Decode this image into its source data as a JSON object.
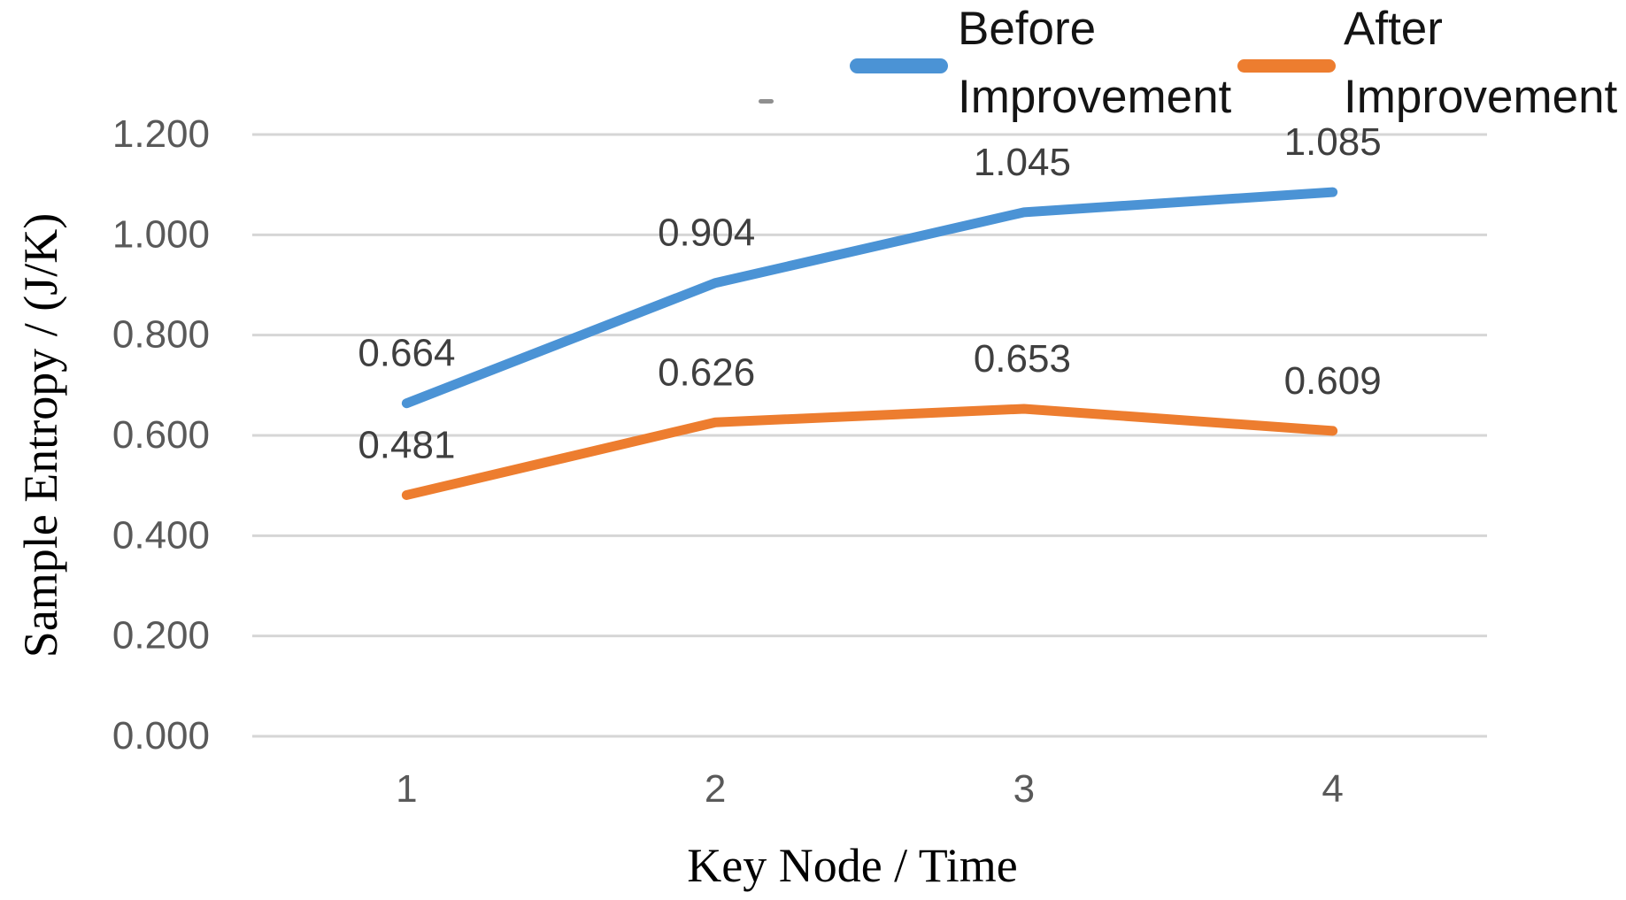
{
  "legend": {
    "items": [
      {
        "label": "Before Improvement",
        "lines": [
          "Before",
          "Improvement"
        ],
        "color": "#4b93d5"
      },
      {
        "label": "After Improvement",
        "lines": [
          "After",
          "Improvement"
        ],
        "color": "#ed7d2f"
      }
    ]
  },
  "chart_data": {
    "type": "line",
    "title": "",
    "xlabel": "Key Node / Time",
    "ylabel": "Sample Entropy / (J/K)",
    "x": [
      1,
      2,
      3,
      4
    ],
    "xtick_labels": [
      "1",
      "2",
      "3",
      "4"
    ],
    "ylim": [
      0,
      1.2
    ],
    "ytick_step": 0.2,
    "ytick_labels": [
      "0.000",
      "0.200",
      "0.400",
      "0.600",
      "0.800",
      "1.000",
      "1.200"
    ],
    "grid": true,
    "gridline_color": "#d6d6d6",
    "legend_position": "top-right",
    "series": [
      {
        "name": "Before Improvement",
        "color": "#4b93d5",
        "values": [
          0.664,
          0.904,
          1.045,
          1.085
        ],
        "data_labels": [
          "0.664",
          "0.904",
          "1.045",
          "1.085"
        ]
      },
      {
        "name": "After Improvement",
        "color": "#ed7d2f",
        "values": [
          0.481,
          0.626,
          0.653,
          0.609
        ],
        "data_labels": [
          "0.481",
          "0.626",
          "0.653",
          "0.609"
        ]
      }
    ]
  }
}
